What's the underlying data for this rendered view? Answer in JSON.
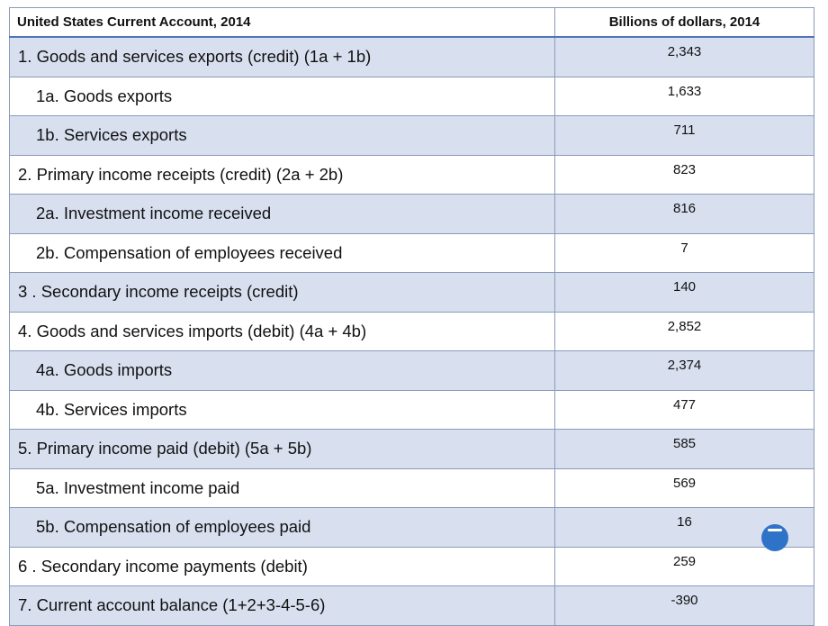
{
  "table": {
    "header_label": "United States Current Account, 2014",
    "header_value": "Billions of dollars, 2014",
    "rows": [
      {
        "label": "1.  Goods and services exports (credit) (1a + 1b)",
        "value": "2,343"
      },
      {
        "label": "1a.  Goods exports",
        "value": "1,633"
      },
      {
        "label": "1b.  Services exports",
        "value": "711"
      },
      {
        "label": "2.  Primary income receipts (credit) (2a + 2b)",
        "value": "823"
      },
      {
        "label": "2a.  Investment income received",
        "value": "816"
      },
      {
        "label": "2b.  Compensation of employees received",
        "value": "7"
      },
      {
        "label": "3 . Secondary income receipts (credit)",
        "value": "140"
      },
      {
        "label": "4.  Goods and services imports (debit) (4a + 4b)",
        "value": "2,852"
      },
      {
        "label": "4a.  Goods imports",
        "value": "2,374"
      },
      {
        "label": "4b.  Services imports",
        "value": "477"
      },
      {
        "label": "5.  Primary income paid (debit) (5a + 5b)",
        "value": "585"
      },
      {
        "label": "5a.  Investment income paid",
        "value": "569"
      },
      {
        "label": "5b.  Compensation of employees paid",
        "value": "16"
      },
      {
        "label": "6 . Secondary income payments (debit)",
        "value": "259"
      },
      {
        "label": "7.  Current account balance (1+2+3-4-5-6)",
        "value": "-390"
      }
    ]
  },
  "colors": {
    "row_shade": "#d8e0f0",
    "border": "#8a9bb8",
    "header_rule": "#4f72b8"
  }
}
